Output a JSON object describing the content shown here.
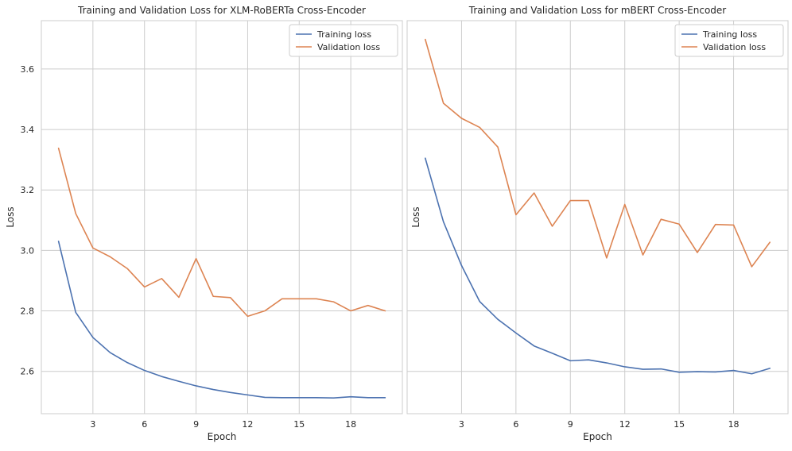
{
  "chart_data": [
    {
      "type": "line",
      "title": "Training and Validation Loss for XLM-RoBERTa Cross-Encoder",
      "xlabel": "Epoch",
      "ylabel": "Loss",
      "xlim": [
        0,
        21
      ],
      "ylim": [
        2.46,
        3.76
      ],
      "xticks": [
        3,
        6,
        9,
        12,
        15,
        18
      ],
      "yticks": [
        2.6,
        2.8,
        3.0,
        3.2,
        3.4,
        3.6
      ],
      "grid": true,
      "legend": "top-right",
      "x": [
        1,
        2,
        3,
        4,
        5,
        6,
        7,
        8,
        9,
        10,
        11,
        12,
        13,
        14,
        15,
        16,
        17,
        18,
        19,
        20
      ],
      "series": [
        {
          "name": "Training loss",
          "color": "#4c72b0",
          "values": [
            3.03,
            2.795,
            2.712,
            2.662,
            2.629,
            2.603,
            2.583,
            2.567,
            2.552,
            2.54,
            2.53,
            2.522,
            2.514,
            2.513,
            2.513,
            2.513,
            2.512,
            2.516,
            2.513,
            2.513
          ]
        },
        {
          "name": "Validation loss",
          "color": "#dd8452",
          "values": [
            3.338,
            3.122,
            3.008,
            2.979,
            2.94,
            2.879,
            2.907,
            2.845,
            2.973,
            2.848,
            2.844,
            2.782,
            2.8,
            2.84,
            2.84,
            2.84,
            2.83,
            2.8,
            2.818,
            2.8
          ]
        }
      ]
    },
    {
      "type": "line",
      "title": "Training and Validation Loss for mBERT Cross-Encoder",
      "xlabel": "Epoch",
      "ylabel": "Loss",
      "xlim": [
        0,
        21
      ],
      "ylim": [
        2.46,
        3.76
      ],
      "xticks": [
        3,
        6,
        9,
        12,
        15,
        18
      ],
      "yticks": [
        2.6,
        2.8,
        3.0,
        3.2,
        3.4,
        3.6
      ],
      "grid": true,
      "legend": "top-right",
      "x": [
        1,
        2,
        3,
        4,
        5,
        6,
        7,
        8,
        9,
        10,
        11,
        12,
        13,
        14,
        15,
        16,
        17,
        18,
        19,
        20
      ],
      "series": [
        {
          "name": "Training loss",
          "color": "#4c72b0",
          "values": [
            3.305,
            3.095,
            2.95,
            2.831,
            2.772,
            2.727,
            2.684,
            2.66,
            2.635,
            2.638,
            2.628,
            2.615,
            2.607,
            2.608,
            2.597,
            2.599,
            2.598,
            2.603,
            2.592,
            2.61
          ]
        },
        {
          "name": "Validation loss",
          "color": "#dd8452",
          "values": [
            3.698,
            3.487,
            3.437,
            3.407,
            3.342,
            3.118,
            3.19,
            3.08,
            3.165,
            3.165,
            2.975,
            3.152,
            2.985,
            3.103,
            3.087,
            2.993,
            3.086,
            3.084,
            2.946,
            3.027
          ]
        }
      ]
    }
  ]
}
